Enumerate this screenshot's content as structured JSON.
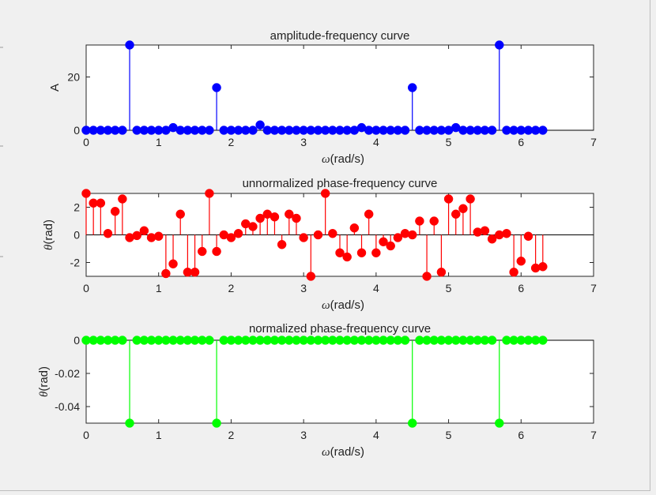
{
  "chart_data": [
    {
      "type": "stem",
      "title": "amplitude-frequency curve",
      "xlabel": "(rad/s)",
      "xlabel_symbol": "ω",
      "ylabel": "A",
      "ylabel_italic": false,
      "xlim": [
        0,
        7
      ],
      "ylim": [
        0,
        32
      ],
      "xticks": [
        "0",
        "1",
        "2",
        "3",
        "4",
        "5",
        "6",
        "7"
      ],
      "yticks": [
        {
          "v": 0,
          "label": "0"
        },
        {
          "v": 20,
          "label": "20"
        }
      ],
      "color": "#0000ff",
      "values": [
        0,
        0,
        0,
        0,
        0,
        0,
        32,
        0,
        0,
        0,
        0,
        0,
        1,
        0,
        0,
        0,
        0,
        0,
        16,
        0,
        0,
        0,
        0,
        0,
        2,
        0,
        0,
        0,
        0,
        0,
        0,
        0,
        0,
        0,
        0,
        0,
        0,
        0,
        1,
        0,
        0,
        0,
        0,
        0,
        0,
        16,
        0,
        0,
        0,
        0,
        0,
        1,
        0,
        0,
        0,
        0,
        0,
        32,
        0,
        0,
        0,
        0,
        0,
        0
      ]
    },
    {
      "type": "stem",
      "title": "unnormalized phase-frequency curve",
      "xlabel": "(rad/s)",
      "xlabel_symbol": "ω",
      "ylabel": "(rad)",
      "ylabel_symbol": "θ",
      "xlim": [
        0,
        7
      ],
      "ylim": [
        -3,
        3
      ],
      "xticks": [
        "0",
        "1",
        "2",
        "3",
        "4",
        "5",
        "6",
        "7"
      ],
      "yticks": [
        {
          "v": -2,
          "label": "-2"
        },
        {
          "v": 0,
          "label": "0"
        },
        {
          "v": 2,
          "label": "2"
        }
      ],
      "color": "#ff0000",
      "values": [
        3.0,
        2.3,
        2.3,
        0.1,
        1.7,
        2.6,
        -0.2,
        -0.05,
        0.3,
        -0.2,
        -0.1,
        -2.8,
        -2.1,
        1.5,
        -2.7,
        -2.7,
        -1.2,
        3.0,
        -1.2,
        0.0,
        -0.2,
        0.1,
        0.8,
        0.6,
        1.2,
        1.5,
        1.3,
        -0.7,
        1.5,
        1.2,
        -0.2,
        -3.0,
        0.0,
        3.0,
        0.1,
        -1.3,
        -1.6,
        0.5,
        -1.3,
        1.5,
        -1.3,
        -0.5,
        -0.8,
        -0.2,
        0.1,
        0.0,
        1.0,
        -3.0,
        1.0,
        -2.7,
        2.6,
        1.5,
        1.9,
        2.6,
        0.2,
        0.3,
        -0.3,
        0.0,
        0.1,
        -2.7,
        -1.9,
        -0.1,
        -2.4,
        -2.3
      ]
    },
    {
      "type": "stem",
      "title": "normalized phase-frequency curve",
      "xlabel": "(rad/s)",
      "xlabel_symbol": "ω",
      "ylabel": "(rad)",
      "ylabel_symbol": "θ",
      "xlim": [
        0,
        7
      ],
      "ylim": [
        -0.05,
        0
      ],
      "xticks": [
        "0",
        "1",
        "2",
        "3",
        "4",
        "5",
        "6",
        "7"
      ],
      "yticks": [
        {
          "v": -0.04,
          "label": "-0.04"
        },
        {
          "v": -0.02,
          "label": "-0.02"
        },
        {
          "v": 0,
          "label": "0"
        }
      ],
      "color": "#00ff00",
      "values": [
        0,
        0,
        0,
        0,
        0,
        0,
        -0.05,
        0,
        0,
        0,
        0,
        0,
        0,
        0,
        0,
        0,
        0,
        0,
        -0.05,
        0,
        0,
        0,
        0,
        0,
        0,
        0,
        0,
        0,
        0,
        0,
        0,
        0,
        0,
        0,
        0,
        0,
        0,
        0,
        0,
        0,
        0,
        0,
        0,
        0,
        0,
        -0.05,
        0,
        0,
        0,
        0,
        0,
        0,
        0,
        0,
        0,
        0,
        0,
        -0.05,
        0,
        0,
        0,
        0,
        0,
        0
      ]
    }
  ]
}
